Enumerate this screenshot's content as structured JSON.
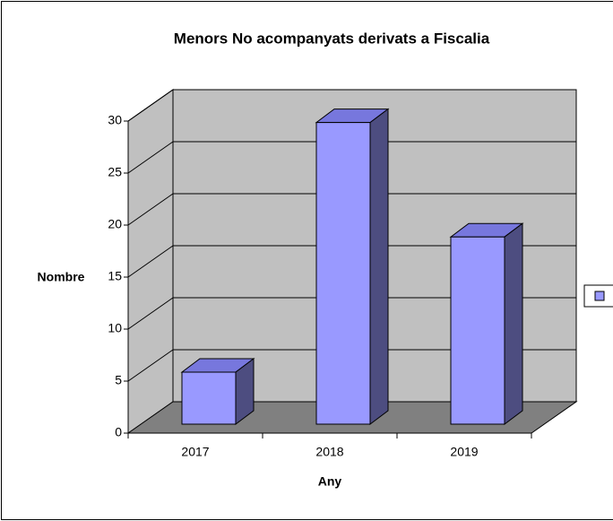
{
  "chart_data": {
    "type": "bar3d",
    "title": "Menors No acompanyats derivats a Fiscalia",
    "categories": [
      "2017",
      "2018",
      "2019"
    ],
    "values": [
      5,
      29,
      18
    ],
    "color": "#9999ff",
    "xlabel": "Any",
    "ylabel": "Nombre",
    "ylim": [
      0,
      30
    ],
    "yticks": [
      0,
      5,
      10,
      15,
      20,
      25,
      30
    ],
    "grid": true,
    "legend": "right"
  }
}
